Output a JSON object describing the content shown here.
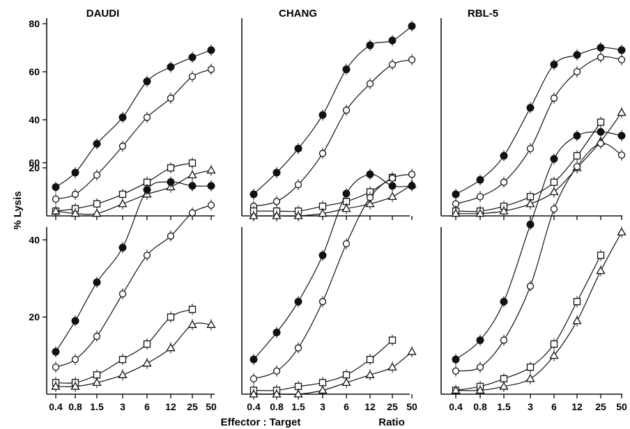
{
  "figure": {
    "ylabel": "% Lysis",
    "xlabel_left": "Effector : Target",
    "xlabel_right": "Ratio"
  },
  "chart_data": [
    {
      "type": "line",
      "row": "top",
      "title": "DAUDI",
      "x": [
        "0.4",
        "0.8",
        "1.5",
        "3",
        "6",
        "12",
        "25",
        "50"
      ],
      "y_ticks": [
        20,
        40,
        60,
        80
      ],
      "ylim": [
        0,
        80
      ],
      "series": [
        {
          "marker": "filled-circle",
          "values": [
            12,
            18,
            30,
            41,
            56,
            62,
            66,
            69
          ]
        },
        {
          "marker": "open-circle",
          "values": [
            7,
            9,
            17,
            29,
            41,
            49,
            58,
            61
          ]
        },
        {
          "marker": "open-square",
          "values": [
            2,
            3,
            5,
            9,
            14,
            20,
            22,
            null
          ]
        },
        {
          "marker": "open-triangle",
          "values": [
            2,
            1,
            1,
            5,
            9,
            12,
            17,
            19
          ]
        }
      ]
    },
    {
      "type": "line",
      "row": "top",
      "title": "CHANG",
      "x": [
        "0.4",
        "0.8",
        "1.5",
        "3",
        "6",
        "12",
        "25",
        "50"
      ],
      "y_ticks": [],
      "ylim": [
        0,
        80
      ],
      "series": [
        {
          "marker": "filled-circle",
          "values": [
            9,
            18,
            28,
            42,
            61,
            71,
            73,
            79
          ]
        },
        {
          "marker": "open-circle",
          "values": [
            4,
            6,
            13,
            26,
            44,
            55,
            63,
            65
          ]
        },
        {
          "marker": "open-square",
          "values": [
            2,
            2,
            2,
            4,
            6,
            10,
            16,
            null
          ]
        },
        {
          "marker": "open-triangle",
          "values": [
            0,
            0,
            0,
            1,
            3,
            5,
            8,
            13
          ]
        }
      ]
    },
    {
      "type": "line",
      "row": "top",
      "title": "RBL-5",
      "x": [
        "0.4",
        "0.8",
        "1.5",
        "3",
        "6",
        "12",
        "25",
        "50"
      ],
      "y_ticks": [],
      "ylim": [
        0,
        80
      ],
      "series": [
        {
          "marker": "filled-circle",
          "values": [
            9,
            15,
            25,
            45,
            63,
            67,
            70,
            69
          ]
        },
        {
          "marker": "open-circle",
          "values": [
            5,
            8,
            14,
            28,
            49,
            60,
            66,
            65
          ]
        },
        {
          "marker": "open-square",
          "values": [
            2,
            2,
            4,
            8,
            14,
            25,
            39,
            null
          ]
        },
        {
          "marker": "open-triangle",
          "values": [
            1,
            1,
            2,
            5,
            10,
            20,
            31,
            43
          ]
        }
      ]
    },
    {
      "type": "line",
      "row": "bottom",
      "x": [
        "0.4",
        "0.8",
        "1.5",
        "3",
        "6",
        "12",
        "25",
        "50"
      ],
      "y_ticks": [
        20,
        40,
        60
      ],
      "ylim": [
        0,
        65
      ],
      "series": [
        {
          "marker": "filled-circle",
          "values": [
            11,
            19,
            29,
            38,
            53,
            55,
            54,
            54
          ]
        },
        {
          "marker": "open-circle",
          "values": [
            7,
            9,
            15,
            26,
            36,
            41,
            47,
            49
          ]
        },
        {
          "marker": "open-square",
          "values": [
            3,
            3,
            5,
            9,
            13,
            20,
            22,
            null
          ]
        },
        {
          "marker": "open-triangle",
          "values": [
            2,
            2,
            3,
            5,
            8,
            12,
            18,
            18
          ]
        }
      ]
    },
    {
      "type": "line",
      "row": "bottom",
      "x": [
        "0.4",
        "0.8",
        "1.5",
        "3",
        "6",
        "12",
        "25",
        "50"
      ],
      "y_ticks": [],
      "ylim": [
        0,
        65
      ],
      "series": [
        {
          "marker": "filled-circle",
          "values": [
            9,
            16,
            24,
            36,
            52,
            57,
            54,
            54
          ]
        },
        {
          "marker": "open-circle",
          "values": [
            4,
            6,
            12,
            24,
            39,
            51,
            56,
            57
          ]
        },
        {
          "marker": "open-square",
          "values": [
            1,
            1,
            2,
            3,
            5,
            9,
            14,
            null
          ]
        },
        {
          "marker": "open-triangle",
          "values": [
            0,
            0,
            0,
            1,
            3,
            5,
            7,
            11
          ]
        }
      ]
    },
    {
      "type": "line",
      "row": "bottom",
      "x": [
        "0.4",
        "0.8",
        "1.5",
        "3",
        "6",
        "12",
        "25",
        "50"
      ],
      "y_ticks": [],
      "ylim": [
        0,
        65
      ],
      "series": [
        {
          "marker": "filled-circle",
          "values": [
            9,
            14,
            24,
            44,
            61,
            67,
            68,
            67
          ]
        },
        {
          "marker": "open-circle",
          "values": [
            6,
            7,
            14,
            28,
            48,
            59,
            65,
            62
          ]
        },
        {
          "marker": "open-square",
          "values": [
            1,
            2,
            4,
            7,
            13,
            24,
            36,
            null
          ]
        },
        {
          "marker": "open-triangle",
          "values": [
            1,
            1,
            2,
            4,
            10,
            19,
            32,
            42
          ]
        }
      ]
    }
  ]
}
